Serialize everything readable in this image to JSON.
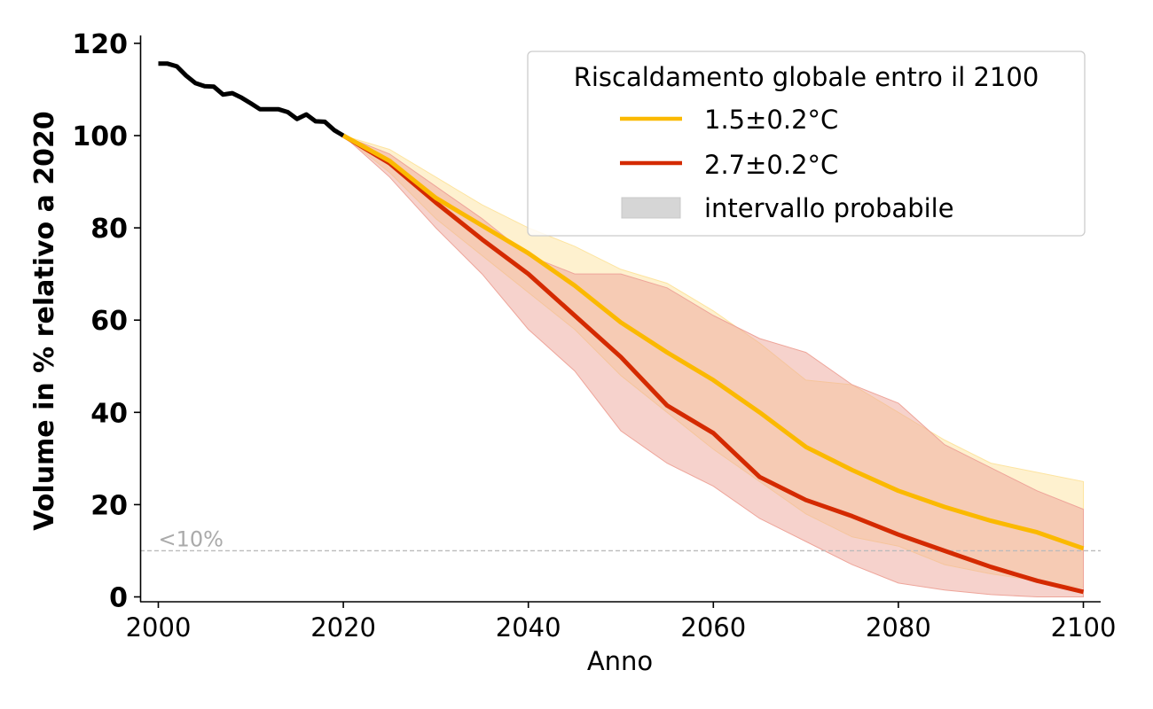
{
  "chart_data": {
    "type": "line",
    "title": "",
    "xlabel": "Anno",
    "ylabel": "Volume in % relativo a 2020",
    "xlim": [
      1998,
      2102
    ],
    "ylim": [
      -1,
      121
    ],
    "x_ticks": [
      2000,
      2020,
      2040,
      2060,
      2080,
      2100
    ],
    "y_ticks": [
      0,
      20,
      40,
      60,
      80,
      100,
      120
    ],
    "grid": false,
    "threshold": {
      "y": 10,
      "label": "<10%",
      "color": "#bbbbbb",
      "style": "dashed"
    },
    "historical": {
      "name": "historical",
      "color": "#000000",
      "x": [
        2000,
        2001,
        2002,
        2003,
        2004,
        2005,
        2006,
        2007,
        2008,
        2009,
        2010,
        2011,
        2012,
        2013,
        2014,
        2015,
        2016,
        2017,
        2018,
        2019,
        2020
      ],
      "values": [
        115.6,
        115.6,
        115.0,
        113.0,
        111.4,
        110.7,
        110.6,
        108.9,
        109.2,
        108.2,
        107.0,
        105.7,
        105.7,
        105.7,
        105.1,
        103.6,
        104.6,
        103.1,
        103.0,
        101.2,
        100.0
      ]
    },
    "series": [
      {
        "name": "1.5±0.2°C",
        "color": "#fbb900",
        "band_color": "#fde4a0",
        "x": [
          2020,
          2025,
          2030,
          2035,
          2040,
          2045,
          2050,
          2055,
          2060,
          2065,
          2070,
          2075,
          2080,
          2085,
          2090,
          2095,
          2100
        ],
        "values": [
          100,
          94.5,
          86.5,
          80.5,
          74.5,
          67.5,
          59.5,
          53,
          47,
          40,
          32.5,
          27.5,
          23,
          19.5,
          16.5,
          14,
          10.5
        ],
        "lower": [
          100,
          92,
          82,
          74,
          66,
          58,
          48,
          40,
          32,
          25,
          18,
          13,
          11,
          7,
          5,
          3.5,
          2
        ],
        "upper": [
          100,
          97,
          91,
          85,
          80,
          76,
          71,
          68,
          62,
          55,
          47,
          46,
          40,
          34,
          29,
          27,
          25
        ]
      },
      {
        "name": "2.7±0.2°C",
        "color": "#d42a00",
        "band_color": "#eea59a",
        "x": [
          2020,
          2025,
          2030,
          2035,
          2040,
          2045,
          2050,
          2055,
          2060,
          2065,
          2070,
          2075,
          2080,
          2085,
          2090,
          2095,
          2100
        ],
        "values": [
          100,
          94,
          85.5,
          77.5,
          70,
          61,
          52,
          41.5,
          35.5,
          26,
          21,
          17.5,
          13.5,
          10,
          6.5,
          3.5,
          1.1
        ],
        "lower": [
          100,
          91,
          80,
          70,
          58,
          49,
          36,
          29,
          24,
          17,
          12,
          7,
          3,
          1.5,
          0.5,
          0,
          0
        ],
        "upper": [
          100,
          96,
          89,
          82,
          74,
          70,
          70,
          67,
          61,
          56,
          53,
          46,
          42,
          33,
          28,
          23,
          19
        ]
      }
    ],
    "legend": {
      "title": "Riscaldamento globale entro il 2100",
      "placement": "top-right",
      "entries": [
        {
          "label": "1.5±0.2°C",
          "kind": "line",
          "color": "#fbb900"
        },
        {
          "label": "2.7±0.2°C",
          "kind": "line",
          "color": "#d42a00"
        },
        {
          "label": "intervallo probabile",
          "kind": "patch",
          "color": "#d6d6d6"
        }
      ]
    }
  }
}
